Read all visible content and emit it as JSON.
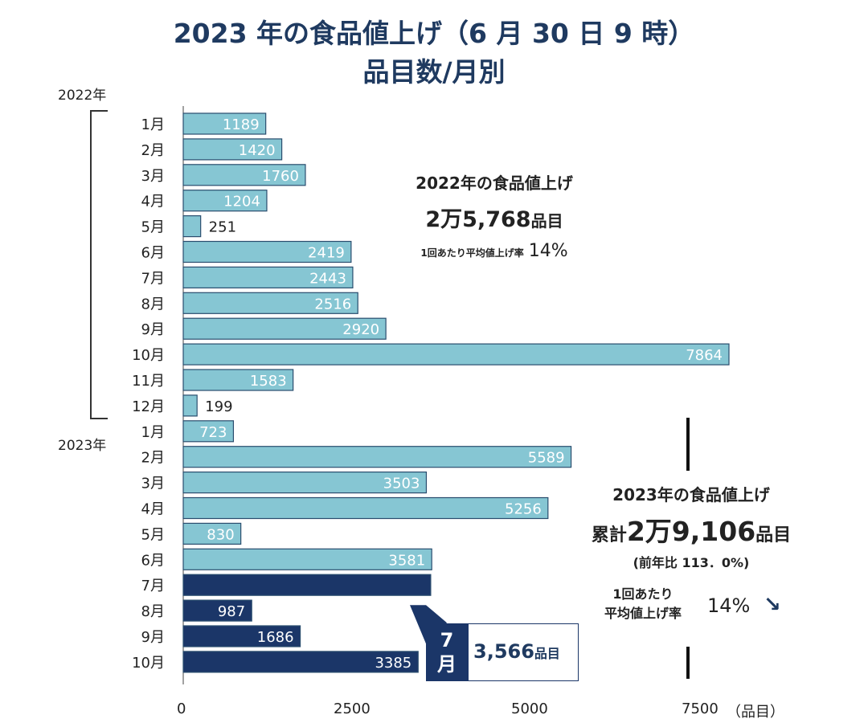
{
  "title_line1": "2023 年の食品値上げ（6 月 30 日 9 時）",
  "title_line2": "品目数/月別",
  "chart_data": {
    "type": "bar",
    "orientation": "horizontal",
    "categories": [
      "1月",
      "2月",
      "3月",
      "4月",
      "5月",
      "6月",
      "7月",
      "8月",
      "9月",
      "10月",
      "11月",
      "12月",
      "1月",
      "2月",
      "3月",
      "4月",
      "5月",
      "6月",
      "7月",
      "8月",
      "9月",
      "10月"
    ],
    "groups": [
      {
        "label": "2022年",
        "from": 0,
        "to": 11
      },
      {
        "label": "2023年",
        "from": 12,
        "to": 21
      }
    ],
    "values": [
      1189,
      1420,
      1760,
      1204,
      251,
      2419,
      2443,
      2516,
      2920,
      7864,
      1583,
      199,
      723,
      5589,
      3503,
      5256,
      830,
      3581,
      3566,
      987,
      1686,
      3385
    ],
    "value_labels": [
      "1189",
      "1420",
      "1760",
      "1204",
      "251",
      "2419",
      "2443",
      "2516",
      "2920",
      "7864",
      "1583",
      "199",
      "723",
      "5589",
      "3503",
      "5256",
      "830",
      "3581",
      "",
      "987",
      "1686",
      "3385"
    ],
    "bar_style": [
      "past",
      "past",
      "past",
      "past",
      "past",
      "past",
      "past",
      "past",
      "past",
      "past",
      "past",
      "past",
      "past",
      "past",
      "past",
      "past",
      "past",
      "past",
      "planned",
      "planned",
      "planned",
      "planned"
    ],
    "xlim": [
      0,
      7500
    ],
    "xticks": [
      "0",
      "2500",
      "5000",
      "7500"
    ],
    "x_unit": "（品目）",
    "colors": {
      "past": "#86c6d3",
      "planned": "#1b3668",
      "border": "#2a4d6e"
    }
  },
  "summary_2022": {
    "heading": "2022年の食品値上げ",
    "total": "2万5,768",
    "total_unit": "品目",
    "rate_label": "1回あたり平均値上げ率",
    "rate": "14%"
  },
  "summary_2023": {
    "heading": "2023年の食品値上げ",
    "total_prefix": "累計",
    "total": "2万9,106",
    "total_unit": "品目",
    "yoy": "(前年比 113．0%)",
    "rate_label_1": "1回あたり",
    "rate_label_2": "平均値上げ率",
    "rate": "14%",
    "trend_icon": "down-arrow-icon"
  },
  "july_callout": {
    "month_1": "7",
    "month_2": "月",
    "value": "3,566",
    "unit": "品目"
  }
}
